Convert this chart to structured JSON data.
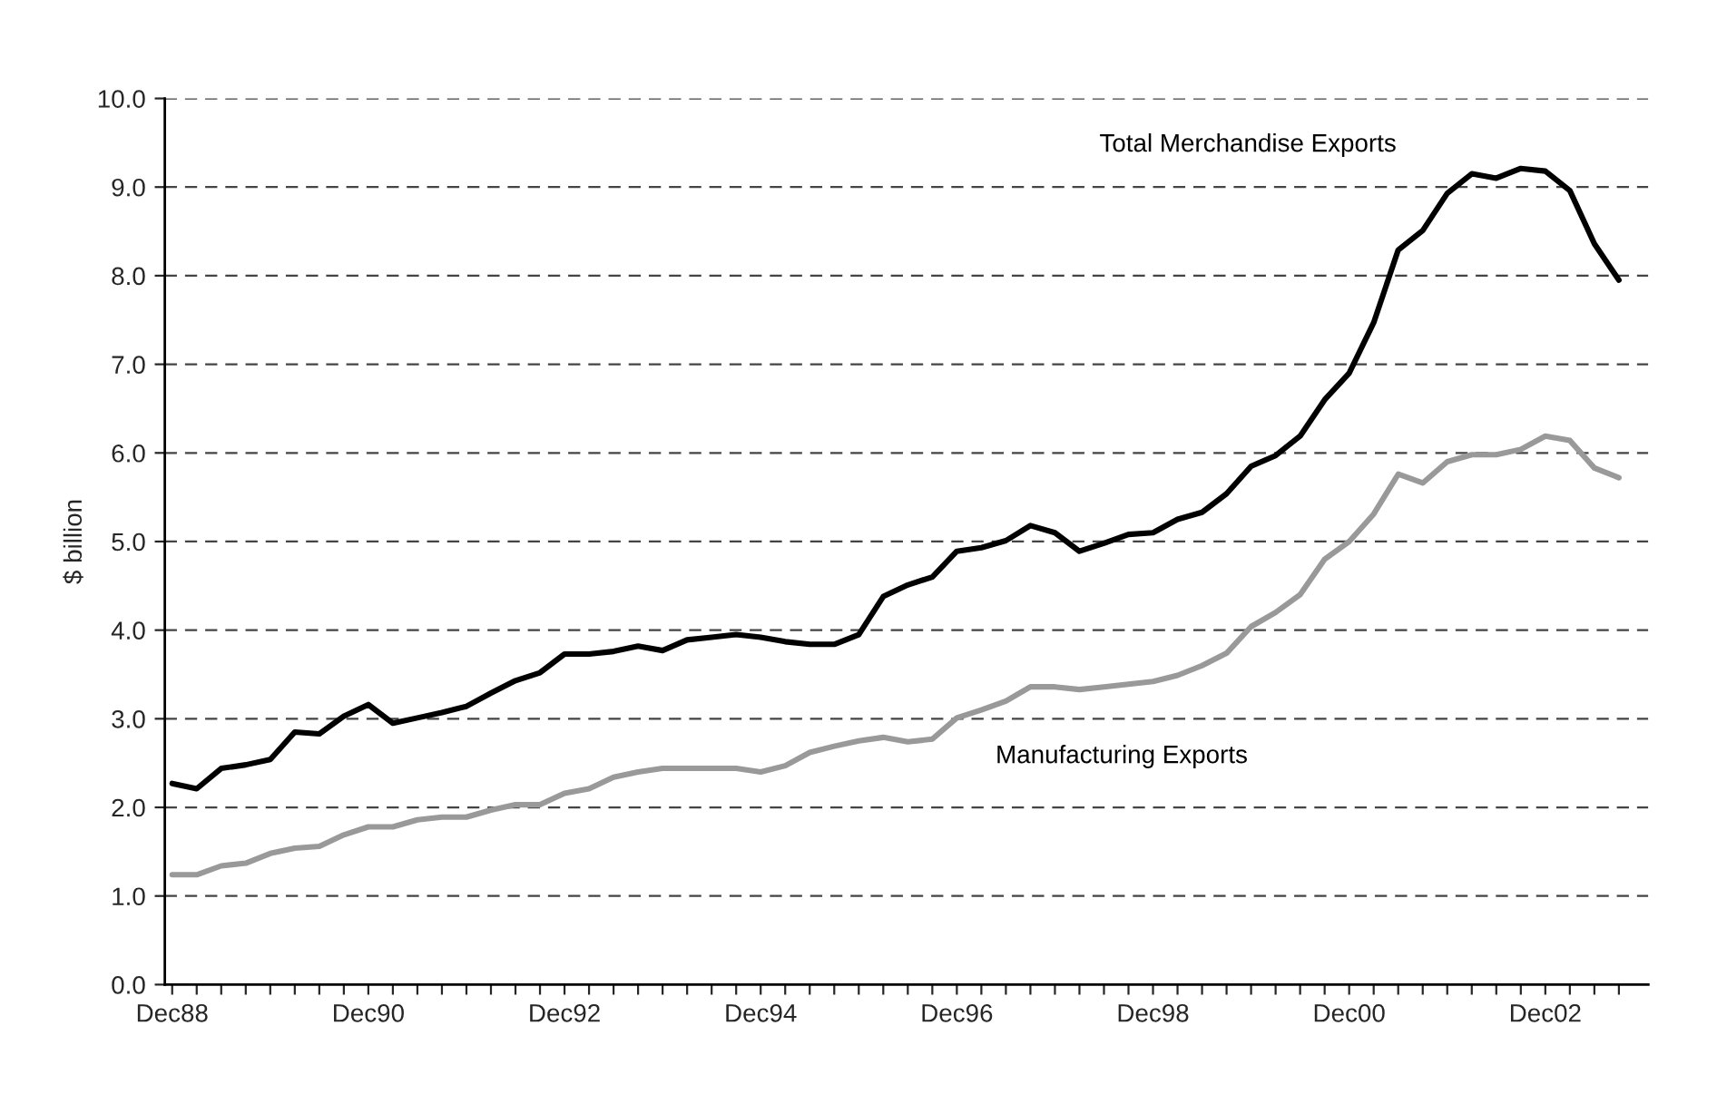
{
  "chart_data": {
    "type": "line",
    "ylabel": "$ billion",
    "categories": [
      "Dec88",
      null,
      null,
      null,
      null,
      null,
      null,
      null,
      "Dec90",
      null,
      null,
      null,
      null,
      null,
      null,
      null,
      "Dec92",
      null,
      null,
      null,
      null,
      null,
      null,
      null,
      "Dec94",
      null,
      null,
      null,
      null,
      null,
      null,
      null,
      "Dec96",
      null,
      null,
      null,
      null,
      null,
      null,
      null,
      "Dec98",
      null,
      null,
      null,
      null,
      null,
      null,
      null,
      "Dec00",
      null,
      null,
      null,
      null,
      null,
      null,
      null,
      "Dec02",
      null,
      null,
      null
    ],
    "series": [
      {
        "name": "Total Merchandise Exports",
        "color": "#000000",
        "values": [
          2.27,
          2.21,
          2.44,
          2.48,
          2.54,
          2.85,
          2.83,
          3.03,
          3.16,
          2.95,
          3.01,
          3.07,
          3.14,
          3.29,
          3.43,
          3.52,
          3.73,
          3.73,
          3.76,
          3.82,
          3.77,
          3.89,
          3.92,
          3.95,
          3.92,
          3.87,
          3.84,
          3.84,
          3.95,
          4.38,
          4.51,
          4.6,
          4.89,
          4.93,
          5.01,
          5.18,
          5.1,
          4.89,
          4.98,
          5.08,
          5.1,
          5.25,
          5.33,
          5.54,
          5.85,
          5.97,
          6.19,
          6.6,
          6.9,
          7.47,
          8.29,
          8.51,
          8.93,
          9.15,
          9.1,
          9.21,
          9.18,
          8.96,
          8.36,
          7.95
        ]
      },
      {
        "name": "Manufacturing Exports",
        "color": "#999999",
        "values": [
          1.24,
          1.24,
          1.34,
          1.37,
          1.48,
          1.54,
          1.56,
          1.69,
          1.78,
          1.78,
          1.86,
          1.89,
          1.89,
          1.97,
          2.03,
          2.03,
          2.16,
          2.21,
          2.34,
          2.4,
          2.44,
          2.44,
          2.44,
          2.44,
          2.4,
          2.47,
          2.62,
          2.69,
          2.75,
          2.79,
          2.74,
          2.77,
          3.01,
          3.1,
          3.2,
          3.36,
          3.36,
          3.33,
          3.36,
          3.39,
          3.42,
          3.49,
          3.6,
          3.74,
          4.04,
          4.2,
          4.4,
          4.8,
          5.0,
          5.31,
          5.76,
          5.66,
          5.9,
          5.98,
          5.98,
          6.04,
          6.19,
          6.14,
          5.83,
          5.72
        ]
      }
    ],
    "ylim": [
      0,
      10
    ],
    "yticks": [
      {
        "value": 0,
        "label": "0.0"
      },
      {
        "value": 1,
        "label": "1.0"
      },
      {
        "value": 2,
        "label": "2.0"
      },
      {
        "value": 3,
        "label": "3.0"
      },
      {
        "value": 4,
        "label": "4.0"
      },
      {
        "value": 5,
        "label": "5.0"
      },
      {
        "value": 6,
        "label": "6.0"
      },
      {
        "value": 7,
        "label": "7.0"
      },
      {
        "value": 8,
        "label": "8.0"
      },
      {
        "value": 9,
        "label": "9.0"
      },
      {
        "value": 10,
        "label": "10.0"
      }
    ],
    "grid": "y",
    "marker": "none",
    "line_style": "solid",
    "legend": false
  }
}
